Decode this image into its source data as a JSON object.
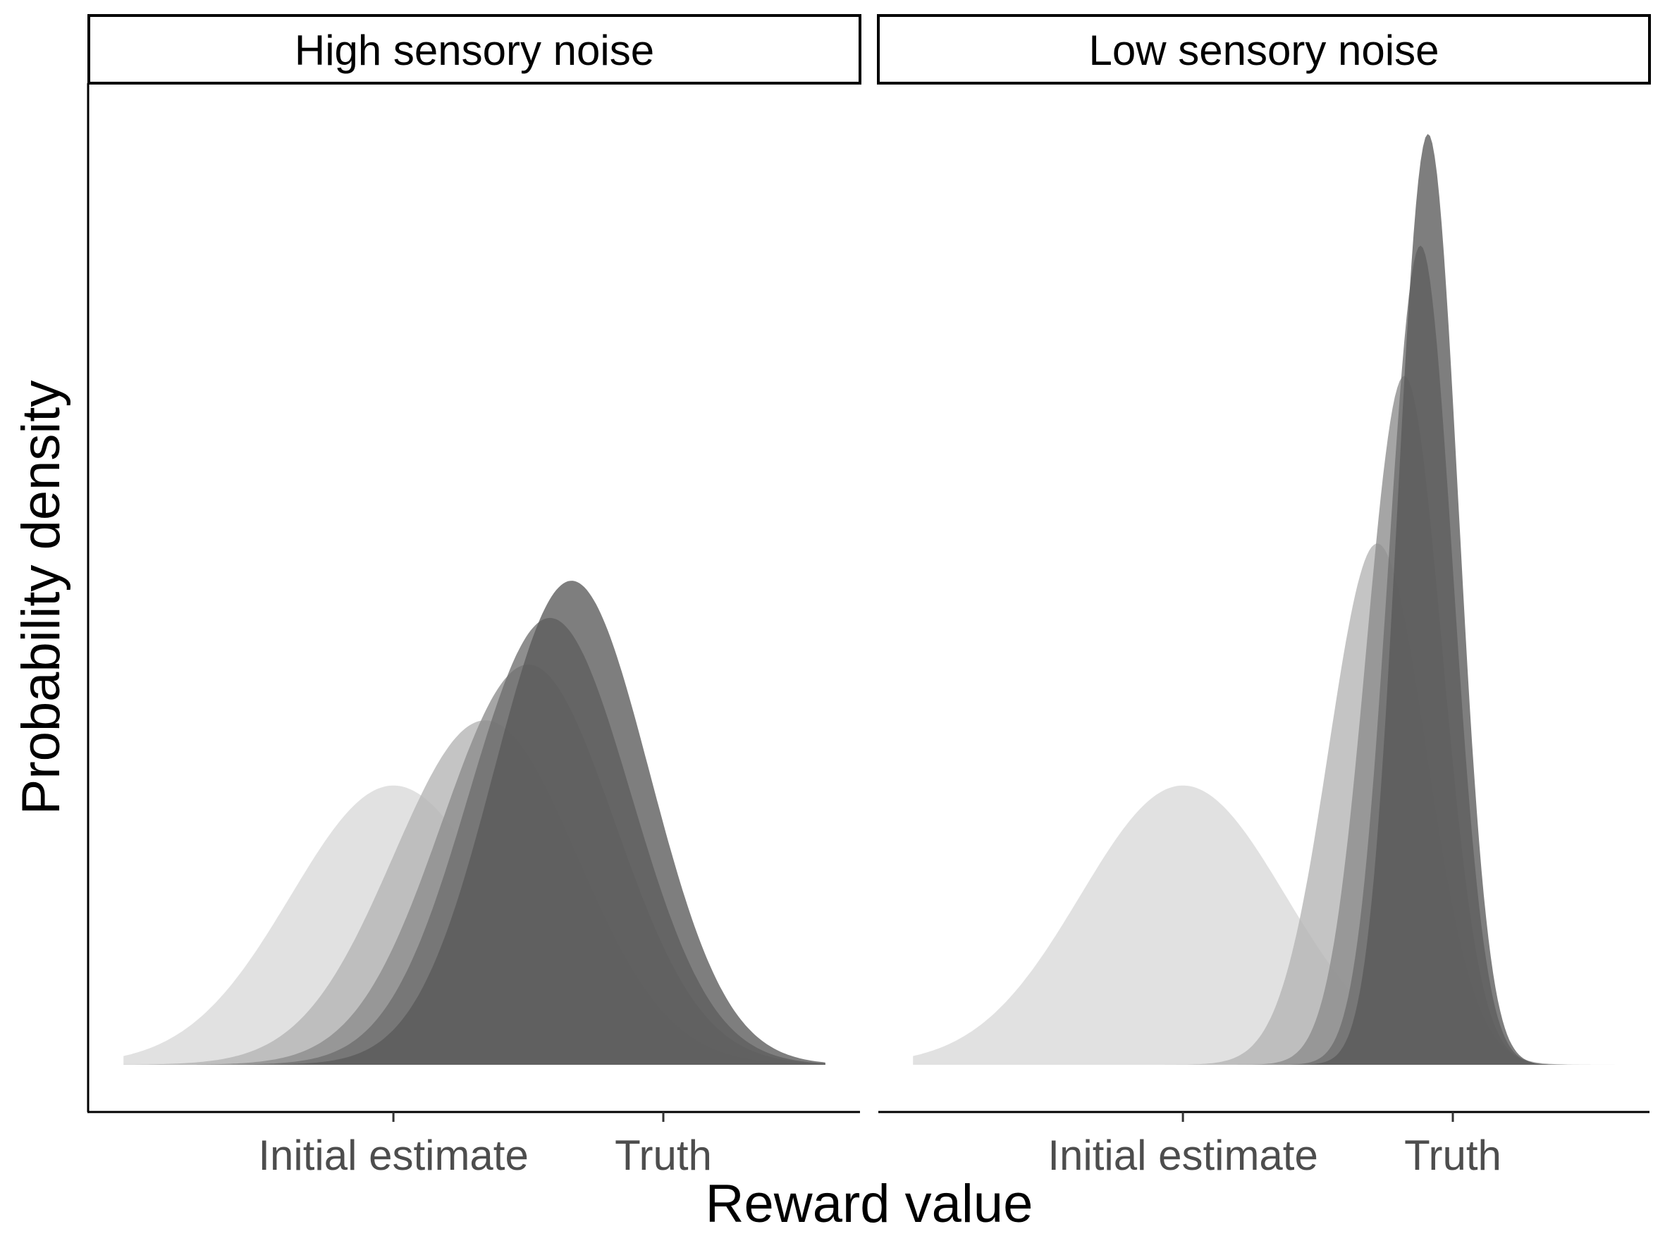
{
  "chart_data": {
    "type": "area",
    "xlabel": "Reward value",
    "ylabel": "Probability density",
    "xlim": [
      -3.25,
      3.25
    ],
    "ylim": [
      0,
      1.0
    ],
    "grid": false,
    "legend": "none",
    "x_ticks": [
      {
        "value": -0.75,
        "label": "Initial estimate"
      },
      {
        "value": 1.75,
        "label": "Truth"
      }
    ],
    "panels": [
      {
        "strip": "High sensory noise",
        "series": [
          {
            "mean": -0.75,
            "peak": 0.3,
            "sd": 0.95,
            "color": "#d9d9d9"
          },
          {
            "mean": 0.1,
            "peak": 0.37,
            "sd": 0.85,
            "color": "#b3b3b3"
          },
          {
            "mean": 0.5,
            "peak": 0.43,
            "sd": 0.8,
            "color": "#8c8c8c"
          },
          {
            "mean": 0.7,
            "peak": 0.48,
            "sd": 0.75,
            "color": "#6e6e6e"
          },
          {
            "mean": 0.9,
            "peak": 0.52,
            "sd": 0.72,
            "color": "#5a5a5a"
          }
        ]
      },
      {
        "strip": "Low sensory noise",
        "series": [
          {
            "mean": -0.75,
            "peak": 0.3,
            "sd": 0.95,
            "color": "#d9d9d9"
          },
          {
            "mean": 1.05,
            "peak": 0.56,
            "sd": 0.45,
            "color": "#b3b3b3"
          },
          {
            "mean": 1.3,
            "peak": 0.74,
            "sd": 0.35,
            "color": "#8c8c8c"
          },
          {
            "mean": 1.45,
            "peak": 0.88,
            "sd": 0.3,
            "color": "#6e6e6e"
          },
          {
            "mean": 1.52,
            "peak": 1.0,
            "sd": 0.28,
            "color": "#5a5a5a"
          }
        ]
      }
    ]
  }
}
